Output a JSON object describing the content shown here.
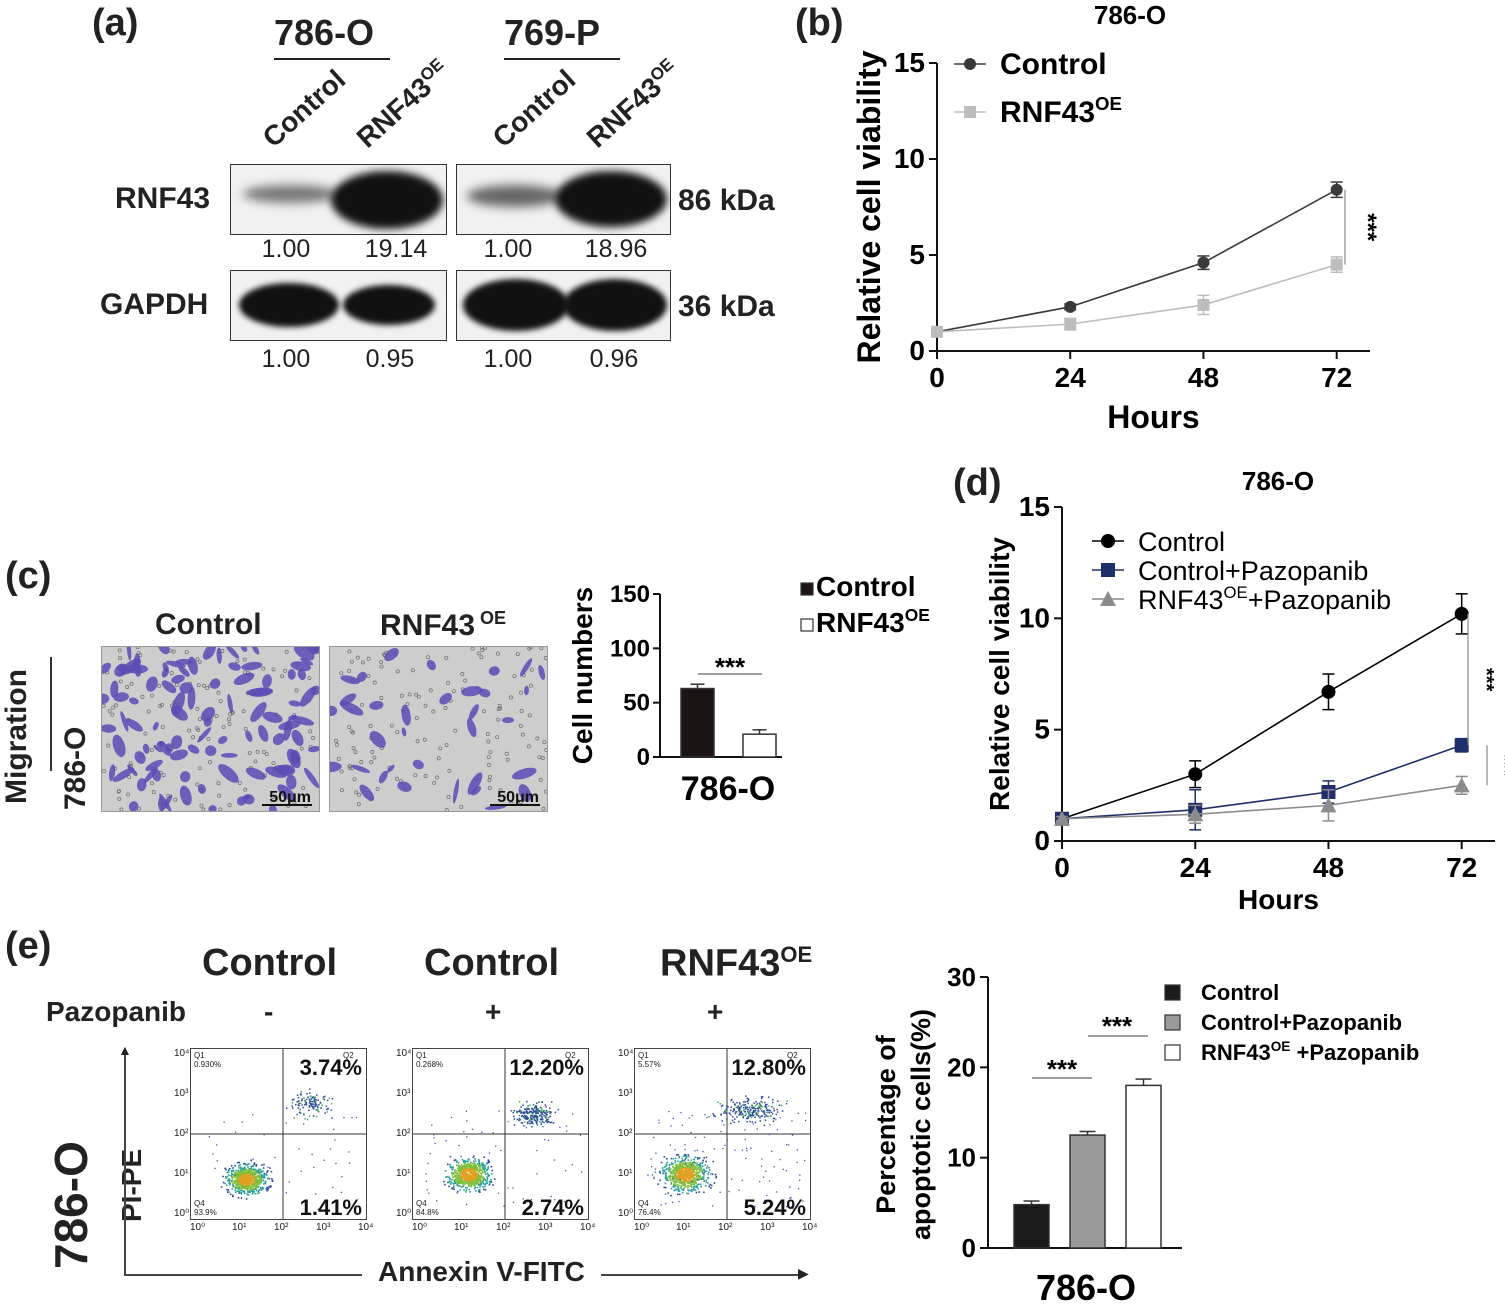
{
  "panels": {
    "a": "(a)",
    "b": "(b)",
    "c": "(c)",
    "d": "(d)",
    "e": "(e)"
  },
  "western_blot": {
    "cell_lines": [
      "786-O",
      "769-P"
    ],
    "lanes": [
      "Control",
      "RNF43",
      "Control",
      "RNF43"
    ],
    "lane_superscript": "OE",
    "proteins": [
      {
        "name": "RNF43",
        "size": "86 kDa",
        "quant": [
          "1.00",
          "19.14",
          "1.00",
          "18.96"
        ]
      },
      {
        "name": "GAPDH",
        "size": "36 kDa",
        "quant": [
          "1.00",
          "0.95",
          "1.00",
          "0.96"
        ]
      }
    ]
  },
  "migration": {
    "row_label": "Migration",
    "cell_line": "786-O",
    "images": [
      {
        "label": "Control",
        "sup": "",
        "scale": "50μm"
      },
      {
        "label": "RNF43",
        "sup": " OE",
        "scale": "50μm"
      }
    ]
  },
  "flow": {
    "row_label": "786-O",
    "y_axis": "PI-PE",
    "x_axis": "Annexin V-FITC",
    "drug_label": "Pazopanib",
    "plots": [
      {
        "group": "Control",
        "sup": "",
        "drug": "-",
        "q1": "0.930%",
        "q2": "3.74%",
        "q3": "1.41%",
        "q4": "93.9%"
      },
      {
        "group": "Control",
        "sup": "",
        "drug": "+",
        "q1": "0.268%",
        "q2": "12.20%",
        "q3": "2.74%",
        "q4": "84.8%"
      },
      {
        "group": "RNF43",
        "sup": "OE",
        "drug": "+",
        "q1": "5.57%",
        "q2": "12.80%",
        "q3": "5.24%",
        "q4": "76.4%"
      }
    ],
    "quadrant_ids": {
      "q1": "Q1",
      "q2": "Q2",
      "q4": "Q4"
    },
    "tick_labels": [
      "10⁰",
      "10¹",
      "10²",
      "10³",
      "10⁴"
    ]
  },
  "colors": {
    "control_dark": "#3a3a3a",
    "rnf_light": "#bdbdbd",
    "navy": "#1f2f6b",
    "gray": "#8c8c8c",
    "stain": "#5a4bb5"
  },
  "chart_data": [
    {
      "id": "b",
      "type": "line",
      "title": "786-O",
      "xlabel": "Hours",
      "ylabel": "Relative cell viability",
      "x": [
        0,
        24,
        48,
        72
      ],
      "xlim": [
        0,
        78
      ],
      "ylim": [
        0,
        15
      ],
      "yticks": [
        0,
        5,
        10,
        15
      ],
      "series": [
        {
          "name": "Control",
          "sup": "",
          "values": [
            1.0,
            2.3,
            4.6,
            8.4
          ],
          "err": [
            0.1,
            0.15,
            0.35,
            0.4
          ],
          "marker": "circle",
          "color": "#3a3a3a"
        },
        {
          "name": "RNF43",
          "sup": "OE",
          "values": [
            1.0,
            1.4,
            2.4,
            4.5
          ],
          "err": [
            0.1,
            0.3,
            0.5,
            0.4
          ],
          "marker": "square",
          "color": "#bdbdbd"
        }
      ],
      "annotations": [
        "***"
      ]
    },
    {
      "id": "c",
      "type": "bar",
      "title": "786-O",
      "ylabel": "Cell numbers",
      "categories": [
        "Control",
        "RNF43"
      ],
      "sup": [
        "",
        "OE"
      ],
      "values": [
        63,
        21
      ],
      "err": [
        4,
        4
      ],
      "ylim": [
        0,
        150
      ],
      "yticks": [
        0,
        50,
        100,
        150
      ],
      "annotations": [
        "***"
      ]
    },
    {
      "id": "d",
      "type": "line",
      "title": "786-O",
      "xlabel": "Hours",
      "ylabel": "Relative cell viability",
      "x": [
        0,
        24,
        48,
        72
      ],
      "xlim": [
        0,
        78
      ],
      "ylim": [
        0,
        15
      ],
      "yticks": [
        0,
        5,
        10,
        15
      ],
      "series": [
        {
          "name": "Control",
          "sup": "",
          "suffix": "",
          "values": [
            1.0,
            3.0,
            6.7,
            10.2
          ],
          "err": [
            0.1,
            0.6,
            0.8,
            0.9
          ],
          "marker": "circle",
          "color": "#000000"
        },
        {
          "name": "Control+Pazopanib",
          "sup": "",
          "suffix": "",
          "values": [
            1.0,
            1.4,
            2.2,
            4.3
          ],
          "err": [
            0.1,
            0.9,
            0.5,
            0.3
          ],
          "marker": "square",
          "color": "#1f2f6b"
        },
        {
          "name": "RNF43",
          "sup": "OE",
          "suffix": "+Pazopanib",
          "values": [
            1.0,
            1.2,
            1.6,
            2.5
          ],
          "err": [
            0.1,
            0.4,
            0.7,
            0.4
          ],
          "marker": "triangle",
          "color": "#8c8c8c"
        }
      ],
      "annotations": [
        "***",
        "***"
      ]
    },
    {
      "id": "e",
      "type": "bar",
      "title": "786-O",
      "ylabel": "Percentage of apoptotic cells(%)",
      "categories": [
        "Control",
        "Control+Pazopanib",
        "RNF43"
      ],
      "sup": [
        "",
        "",
        "OE"
      ],
      "suffix": [
        "",
        "",
        " +Pazopanib"
      ],
      "values": [
        4.8,
        12.5,
        18.0
      ],
      "err": [
        0.4,
        0.4,
        0.7
      ],
      "ylim": [
        0,
        30
      ],
      "yticks": [
        0,
        10,
        20,
        30
      ],
      "colors": [
        "#1a1a1a",
        "#999999",
        "#ffffff"
      ],
      "annotations": [
        "***",
        "***"
      ]
    }
  ]
}
